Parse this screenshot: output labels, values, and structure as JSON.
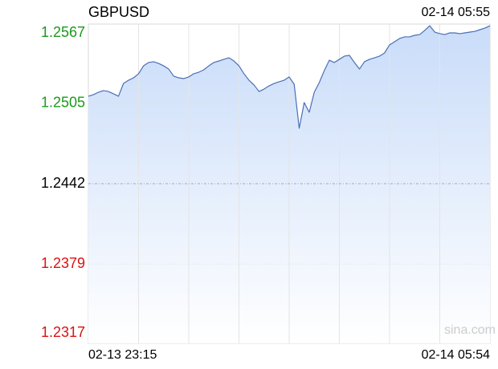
{
  "chart_data": {
    "type": "line",
    "title": "GBPUSD",
    "timestamp": "02-14 05:55",
    "watermark": "sina.com",
    "categories": [
      "02-13 23:15",
      null,
      null,
      null,
      null,
      null,
      null,
      null,
      null,
      null,
      null,
      null,
      null,
      null,
      null,
      null,
      null,
      null,
      null,
      null,
      null,
      null,
      null,
      null,
      null,
      null,
      null,
      null,
      null,
      null,
      null,
      null,
      null,
      null,
      null,
      null,
      null,
      null,
      null,
      null,
      null,
      null,
      null,
      null,
      null,
      null,
      null,
      null,
      null,
      null,
      null,
      null,
      null,
      null,
      null,
      null,
      null,
      null,
      null,
      null,
      null,
      null,
      null,
      null,
      null,
      null,
      null,
      null,
      null,
      null,
      null,
      null,
      null,
      null,
      null,
      null,
      null,
      null,
      null,
      null,
      "02-14 05:54"
    ],
    "series": [
      {
        "name": "GBPUSD",
        "color": "#4a6fb5",
        "fill": "#cddffa",
        "values": [
          1.25105,
          1.25117,
          1.25136,
          1.25149,
          1.25142,
          1.25124,
          1.25105,
          1.25205,
          1.2523,
          1.25249,
          1.25281,
          1.25343,
          1.25369,
          1.25375,
          1.25362,
          1.25343,
          1.25318,
          1.25262,
          1.25249,
          1.25243,
          1.25256,
          1.25281,
          1.25293,
          1.25312,
          1.25343,
          1.25369,
          1.25381,
          1.25394,
          1.25406,
          1.25381,
          1.25343,
          1.25281,
          1.2523,
          1.25193,
          1.25142,
          1.25161,
          1.25186,
          1.25205,
          1.25218,
          1.2523,
          1.25256,
          1.25199,
          1.24854,
          1.25055,
          1.24979,
          1.25136,
          1.25212,
          1.25306,
          1.25387,
          1.25369,
          1.25394,
          1.25419,
          1.25425,
          1.25369,
          1.25318,
          1.25375,
          1.25394,
          1.25406,
          1.25419,
          1.25444,
          1.25507,
          1.25532,
          1.25557,
          1.2557,
          1.2557,
          1.25582,
          1.25588,
          1.2562,
          1.25657,
          1.25607,
          1.25595,
          1.25588,
          1.25601,
          1.25601,
          1.25595,
          1.25601,
          1.25607,
          1.25613,
          1.25626,
          1.25639,
          1.25657
        ]
      }
    ],
    "ylim": [
      1.2317,
      1.2567
    ],
    "yticks": [
      1.2567,
      1.2505,
      1.2442,
      1.2379,
      1.2317
    ],
    "ytick_colors": [
      "#1a9a1a",
      "#1a9a1a",
      "#000000",
      "#dd1111",
      "#dd1111"
    ],
    "grid": true
  }
}
